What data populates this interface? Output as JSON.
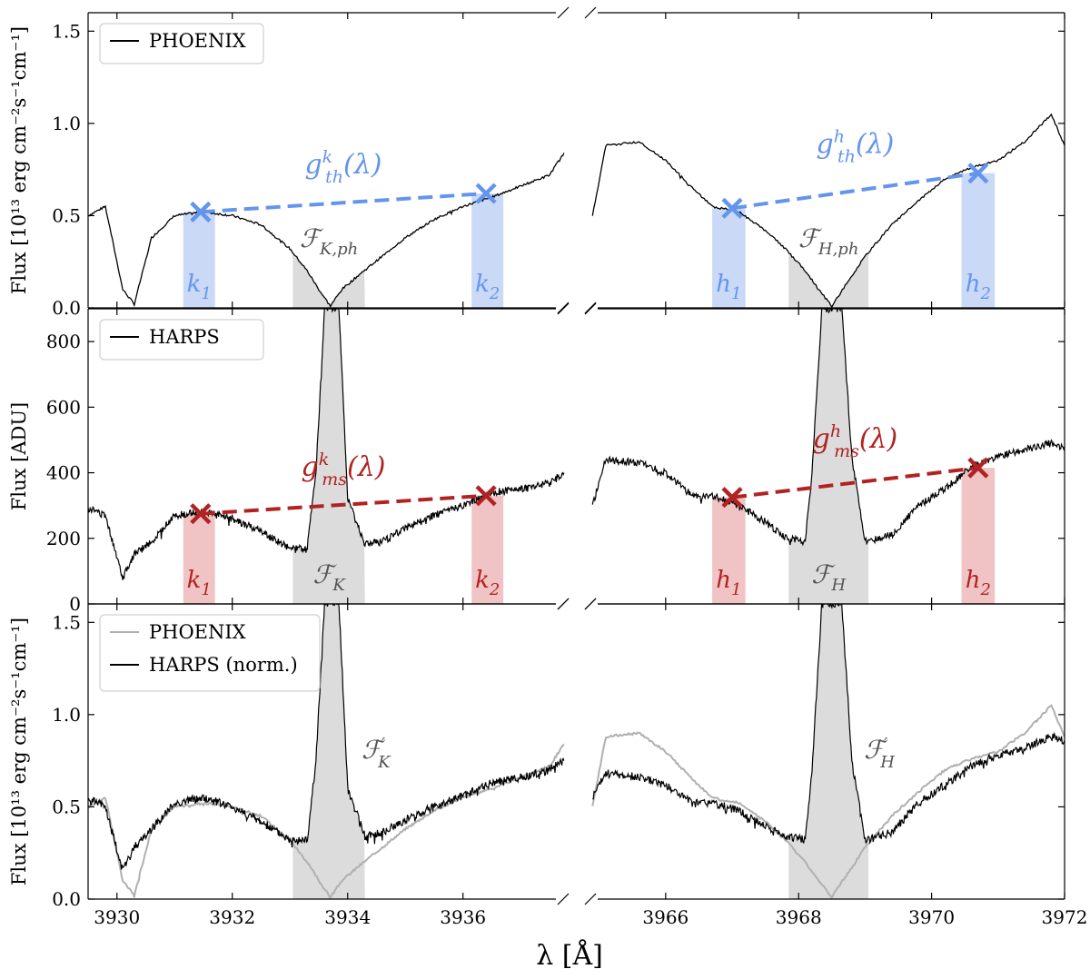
{
  "chart_data": [
    {
      "type": "line",
      "panel": "top",
      "ylabel": "Flux [10¹³ erg cm⁻²s⁻¹cm⁻¹]",
      "ylim": [
        0,
        1.6
      ],
      "yticks": [
        "0.0",
        "0.5",
        "1.0",
        "1.5"
      ],
      "legend": {
        "placement": "top-left",
        "entries": [
          {
            "label": "PHOENIX",
            "color": "#000000"
          }
        ]
      },
      "series": [
        {
          "name": "PHOENIX",
          "color": "#000000",
          "left": {
            "x": [
              3929.5,
              3929.8,
              3930.1,
              3930.3,
              3930.6,
              3931.0,
              3931.5,
              3932.0,
              3932.5,
              3933.0,
              3933.3,
              3933.5,
              3933.7,
              3933.9,
              3934.2,
              3934.6,
              3935.0,
              3935.5,
              3936.0,
              3936.5,
              3937.0,
              3937.5,
              3937.75
            ],
            "y": [
              0.5,
              0.55,
              0.1,
              0.02,
              0.38,
              0.5,
              0.52,
              0.5,
              0.45,
              0.32,
              0.2,
              0.1,
              0.01,
              0.1,
              0.18,
              0.28,
              0.38,
              0.48,
              0.55,
              0.6,
              0.66,
              0.72,
              0.84
            ]
          },
          "right": {
            "x": [
              3964.9,
              3965.1,
              3965.6,
              3966.0,
              3966.4,
              3966.7,
              3967.1,
              3967.5,
              3967.8,
              3968.1,
              3968.3,
              3968.5,
              3968.7,
              3969.0,
              3969.4,
              3969.8,
              3970.2,
              3970.6,
              3971.0,
              3971.4,
              3971.8,
              3972.0
            ],
            "y": [
              0.5,
              0.88,
              0.9,
              0.8,
              0.65,
              0.55,
              0.52,
              0.42,
              0.32,
              0.2,
              0.1,
              0.01,
              0.12,
              0.28,
              0.45,
              0.58,
              0.7,
              0.76,
              0.8,
              0.9,
              1.05,
              0.88
            ]
          }
        }
      ],
      "continuum": {
        "color": "#6495ED",
        "k": {
          "label_main": "g",
          "label_sup": "k",
          "label_sub": "th",
          "label_tail": "(λ)",
          "x1": 3931.45,
          "y1": 0.52,
          "x2": 3936.4,
          "y2": 0.62
        },
        "h": {
          "label_main": "g",
          "label_sup": "h",
          "label_sub": "th",
          "label_tail": "(λ)",
          "x1": 3967.0,
          "y1": 0.54,
          "x2": 3970.7,
          "y2": 0.73
        }
      },
      "bands": [
        {
          "main": "k",
          "sub": "1",
          "x0": 3931.15,
          "x1": 3931.7
        },
        {
          "main": "k",
          "sub": "2",
          "x0": 3936.15,
          "x1": 3936.7
        },
        {
          "main": "h",
          "sub": "1",
          "x0": 3966.7,
          "x1": 3967.2
        },
        {
          "main": "h",
          "sub": "2",
          "x0": 3970.45,
          "x1": 3970.95
        }
      ],
      "flux_regions": [
        {
          "main": "ℱ",
          "sub": "K,ph",
          "x0": 3933.05,
          "x1": 3934.3
        },
        {
          "main": "ℱ",
          "sub": "H,ph",
          "x0": 3967.85,
          "x1": 3969.05
        }
      ]
    },
    {
      "type": "line",
      "panel": "middle",
      "ylabel": "Flux [ADU]",
      "ylim": [
        0,
        900
      ],
      "yticks": [
        "0",
        "200",
        "400",
        "600",
        "800"
      ],
      "legend": {
        "placement": "top-left",
        "entries": [
          {
            "label": "HARPS",
            "color": "#000000"
          }
        ]
      },
      "series": [
        {
          "name": "HARPS",
          "color": "#000000",
          "left": {
            "x": [
              3929.5,
              3929.8,
              3930.1,
              3930.3,
              3930.6,
              3931.0,
              3931.5,
              3932.0,
              3932.5,
              3933.0,
              3933.3,
              3933.45,
              3933.6,
              3933.7,
              3933.85,
              3934.0,
              3934.3,
              3934.6,
              3935.0,
              3935.5,
              3936.0,
              3936.5,
              3937.0,
              3937.5,
              3937.75
            ],
            "y": [
              290,
              270,
              80,
              150,
              190,
              270,
              280,
              260,
              220,
              170,
              170,
              400,
              900,
              900,
              900,
              320,
              180,
              190,
              230,
              270,
              300,
              340,
              350,
              370,
              400
            ]
          },
          "right": {
            "x": [
              3964.9,
              3965.1,
              3965.6,
              3966.0,
              3966.4,
              3966.7,
              3967.1,
              3967.5,
              3967.8,
              3968.1,
              3968.2,
              3968.35,
              3968.5,
              3968.65,
              3968.8,
              3969.0,
              3969.4,
              3969.8,
              3970.2,
              3970.6,
              3971.0,
              3971.4,
              3971.8,
              3972.0
            ],
            "y": [
              300,
              440,
              430,
              400,
              330,
              330,
              300,
              250,
              200,
              190,
              400,
              900,
              900,
              900,
              450,
              190,
              210,
              300,
              350,
              420,
              450,
              470,
              490,
              480
            ]
          }
        }
      ],
      "continuum": {
        "color": "#B22222",
        "k": {
          "label_main": "g",
          "label_sup": "k",
          "label_sub": "ms",
          "label_tail": "(λ)",
          "x1": 3931.45,
          "y1": 275,
          "x2": 3936.4,
          "y2": 330
        },
        "h": {
          "label_main": "g",
          "label_sup": "h",
          "label_sub": "ms",
          "label_tail": "(λ)",
          "x1": 3967.0,
          "y1": 325,
          "x2": 3970.7,
          "y2": 415
        }
      },
      "bands": [
        {
          "main": "k",
          "sub": "1",
          "x0": 3931.15,
          "x1": 3931.7
        },
        {
          "main": "k",
          "sub": "2",
          "x0": 3936.15,
          "x1": 3936.7
        },
        {
          "main": "h",
          "sub": "1",
          "x0": 3966.7,
          "x1": 3967.2
        },
        {
          "main": "h",
          "sub": "2",
          "x0": 3970.45,
          "x1": 3970.95
        }
      ],
      "flux_regions": [
        {
          "main": "ℱ",
          "sub": "K",
          "x0": 3933.05,
          "x1": 3934.3
        },
        {
          "main": "ℱ",
          "sub": "H",
          "x0": 3967.85,
          "x1": 3969.05
        }
      ]
    },
    {
      "type": "line",
      "panel": "bottom",
      "ylabel": "Flux [10¹³ erg cm⁻²s⁻¹cm⁻¹]",
      "ylim": [
        0,
        1.6
      ],
      "yticks": [
        "0.0",
        "0.5",
        "1.0",
        "1.5"
      ],
      "legend": {
        "placement": "top-left",
        "entries": [
          {
            "label": "PHOENIX",
            "color": "#b0b0b0"
          },
          {
            "label": "HARPS (norm.)",
            "color": "#000000"
          }
        ]
      },
      "series": [
        {
          "name": "PHOENIX",
          "color": "#b0b0b0",
          "left": {
            "x": [
              3929.5,
              3929.8,
              3930.1,
              3930.3,
              3930.6,
              3931.0,
              3931.5,
              3932.0,
              3932.5,
              3933.0,
              3933.3,
              3933.5,
              3933.7,
              3933.9,
              3934.2,
              3934.6,
              3935.0,
              3935.5,
              3936.0,
              3936.5,
              3937.0,
              3937.5,
              3937.75
            ],
            "y": [
              0.5,
              0.55,
              0.1,
              0.02,
              0.38,
              0.5,
              0.52,
              0.5,
              0.45,
              0.32,
              0.2,
              0.1,
              0.01,
              0.1,
              0.18,
              0.28,
              0.38,
              0.48,
              0.55,
              0.6,
              0.66,
              0.72,
              0.84
            ]
          },
          "right": {
            "x": [
              3964.9,
              3965.1,
              3965.6,
              3966.0,
              3966.4,
              3966.7,
              3967.1,
              3967.5,
              3967.8,
              3968.1,
              3968.3,
              3968.5,
              3968.7,
              3969.0,
              3969.4,
              3969.8,
              3970.2,
              3970.6,
              3971.0,
              3971.4,
              3971.8,
              3972.0
            ],
            "y": [
              0.5,
              0.88,
              0.9,
              0.8,
              0.65,
              0.55,
              0.52,
              0.42,
              0.32,
              0.2,
              0.1,
              0.01,
              0.12,
              0.28,
              0.45,
              0.58,
              0.7,
              0.76,
              0.8,
              0.9,
              1.05,
              0.88
            ]
          }
        },
        {
          "name": "HARPS (norm.)",
          "color": "#000000",
          "left": {
            "x": [
              3929.5,
              3929.8,
              3930.1,
              3930.3,
              3930.6,
              3931.0,
              3931.5,
              3932.0,
              3932.5,
              3933.0,
              3933.3,
              3933.45,
              3933.6,
              3933.7,
              3933.85,
              3934.0,
              3934.3,
              3934.6,
              3935.0,
              3935.5,
              3936.0,
              3936.5,
              3937.0,
              3937.5,
              3937.75
            ],
            "y": [
              0.55,
              0.5,
              0.15,
              0.28,
              0.38,
              0.52,
              0.55,
              0.5,
              0.42,
              0.32,
              0.32,
              0.75,
              1.6,
              1.6,
              1.6,
              0.6,
              0.34,
              0.36,
              0.43,
              0.5,
              0.56,
              0.63,
              0.66,
              0.7,
              0.75
            ]
          },
          "right": {
            "x": [
              3964.9,
              3965.1,
              3965.6,
              3966.0,
              3966.4,
              3966.7,
              3967.1,
              3967.5,
              3967.8,
              3968.1,
              3968.2,
              3968.35,
              3968.5,
              3968.65,
              3968.8,
              3969.0,
              3969.4,
              3969.8,
              3970.2,
              3970.6,
              3971.0,
              3971.4,
              3971.8,
              3972.0
            ],
            "y": [
              0.55,
              0.68,
              0.66,
              0.62,
              0.52,
              0.52,
              0.48,
              0.4,
              0.34,
              0.32,
              0.7,
              1.6,
              1.6,
              1.6,
              0.75,
              0.32,
              0.36,
              0.52,
              0.62,
              0.72,
              0.78,
              0.82,
              0.88,
              0.86
            ]
          }
        }
      ],
      "flux_regions": [
        {
          "main": "ℱ",
          "sub": "K",
          "prime": true,
          "x0": 3933.05,
          "x1": 3934.3
        },
        {
          "main": "ℱ",
          "sub": "H",
          "prime": true,
          "x0": 3967.85,
          "x1": 3969.05
        }
      ]
    }
  ],
  "xaxis": {
    "label": "λ [Å]",
    "left_range": [
      3929.5,
      3937.8
    ],
    "right_range": [
      3964.8,
      3972.0
    ],
    "left_ticks": [
      "3930",
      "3932",
      "3934",
      "3936"
    ],
    "right_ticks": [
      "3966",
      "3968",
      "3970",
      "3972"
    ],
    "broken": true
  },
  "colors": {
    "phoenix": "#000000",
    "harps": "#000000",
    "phoenix_light": "#b0b0b0",
    "blue": "#6495ED",
    "red": "#B22222",
    "band_blue": "#c9d9f6",
    "band_red": "#f0c4c4",
    "flux_fill": "#dcdcdc"
  }
}
